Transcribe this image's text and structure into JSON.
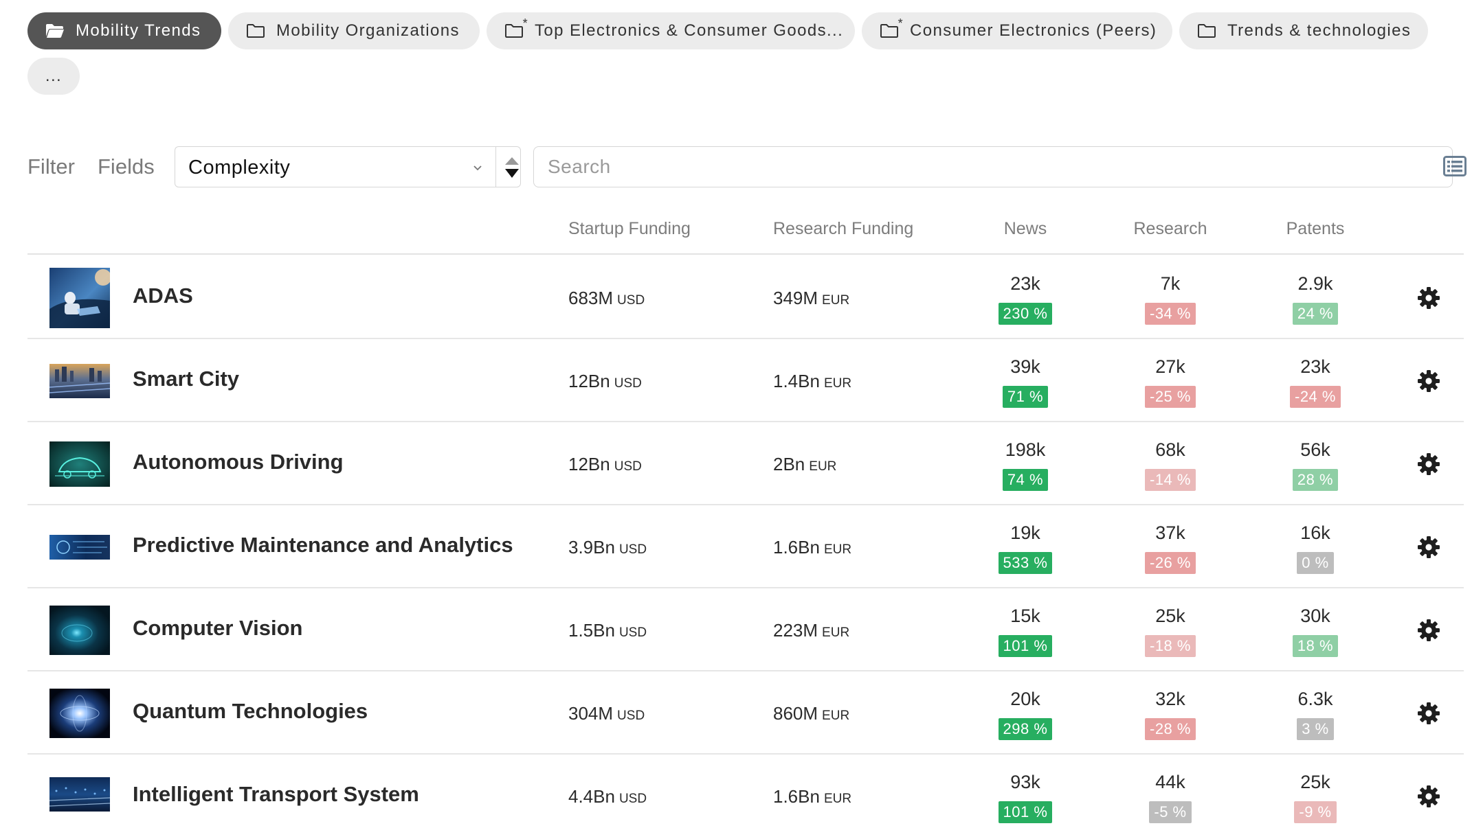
{
  "tabs": [
    {
      "label": "Mobility Trends",
      "active": true,
      "icon": "folder-open-icon",
      "starred": false
    },
    {
      "label": "Mobility Organizations",
      "active": false,
      "icon": "folder-icon",
      "starred": false
    },
    {
      "label": "Top Electronics & Consumer Goods...",
      "active": false,
      "icon": "folder-icon",
      "starred": true,
      "star": "*"
    },
    {
      "label": "Consumer Electronics (Peers)",
      "active": false,
      "icon": "folder-icon",
      "starred": true,
      "star": "*"
    },
    {
      "label": "Trends & technologies",
      "active": false,
      "icon": "folder-icon",
      "starred": false
    },
    {
      "label": "..."
    }
  ],
  "toolbar": {
    "filter_label": "Filter",
    "fields_label": "Fields",
    "sort_select_value": "Complexity",
    "search_placeholder": "Search"
  },
  "columns": {
    "startup_funding": "Startup Funding",
    "research_funding": "Research Funding",
    "news": "News",
    "research": "Research",
    "patents": "Patents"
  },
  "colors": {
    "badge_up_strong": "#27ae60",
    "badge_up_light": "#8fcfa5",
    "badge_down": "#e8a0a0",
    "badge_down_light": "#eab9b9",
    "badge_neutral": "#bdbdbd",
    "active_tab": "#555555"
  },
  "rows": [
    {
      "name": "ADAS",
      "thumbnail": "adas-image",
      "startup_funding": {
        "value": "683M",
        "currency": "USD"
      },
      "research_funding": {
        "value": "349M",
        "currency": "EUR"
      },
      "news": {
        "value": "23k",
        "change": "230 %",
        "tone": "up_strong"
      },
      "research": {
        "value": "7k",
        "change": "-34 %",
        "tone": "down"
      },
      "patents": {
        "value": "2.9k",
        "change": "24 %",
        "tone": "up_light"
      }
    },
    {
      "name": "Smart City",
      "thumbnail": "smart-city-image",
      "startup_funding": {
        "value": "12Bn",
        "currency": "USD"
      },
      "research_funding": {
        "value": "1.4Bn",
        "currency": "EUR"
      },
      "news": {
        "value": "39k",
        "change": "71 %",
        "tone": "up_strong"
      },
      "research": {
        "value": "27k",
        "change": "-25 %",
        "tone": "down"
      },
      "patents": {
        "value": "23k",
        "change": "-24 %",
        "tone": "down"
      }
    },
    {
      "name": "Autonomous Driving",
      "thumbnail": "autonomous-driving-image",
      "startup_funding": {
        "value": "12Bn",
        "currency": "USD"
      },
      "research_funding": {
        "value": "2Bn",
        "currency": "EUR"
      },
      "news": {
        "value": "198k",
        "change": "74 %",
        "tone": "up_strong"
      },
      "research": {
        "value": "68k",
        "change": "-14 %",
        "tone": "down_light"
      },
      "patents": {
        "value": "56k",
        "change": "28 %",
        "tone": "up_light"
      }
    },
    {
      "name": "Predictive Maintenance and Analytics",
      "thumbnail": "predictive-maintenance-image",
      "startup_funding": {
        "value": "3.9Bn",
        "currency": "USD"
      },
      "research_funding": {
        "value": "1.6Bn",
        "currency": "EUR"
      },
      "news": {
        "value": "19k",
        "change": "533 %",
        "tone": "up_strong"
      },
      "research": {
        "value": "37k",
        "change": "-26 %",
        "tone": "down"
      },
      "patents": {
        "value": "16k",
        "change": "0 %",
        "tone": "neutral"
      }
    },
    {
      "name": "Computer Vision",
      "thumbnail": "computer-vision-image",
      "startup_funding": {
        "value": "1.5Bn",
        "currency": "USD"
      },
      "research_funding": {
        "value": "223M",
        "currency": "EUR"
      },
      "news": {
        "value": "15k",
        "change": "101 %",
        "tone": "up_strong"
      },
      "research": {
        "value": "25k",
        "change": "-18 %",
        "tone": "down_light"
      },
      "patents": {
        "value": "30k",
        "change": "18 %",
        "tone": "up_light"
      }
    },
    {
      "name": "Quantum Technologies",
      "thumbnail": "quantum-technologies-image",
      "startup_funding": {
        "value": "304M",
        "currency": "USD"
      },
      "research_funding": {
        "value": "860M",
        "currency": "EUR"
      },
      "news": {
        "value": "20k",
        "change": "298 %",
        "tone": "up_strong"
      },
      "research": {
        "value": "32k",
        "change": "-28 %",
        "tone": "down"
      },
      "patents": {
        "value": "6.3k",
        "change": "3 %",
        "tone": "neutral"
      }
    },
    {
      "name": "Intelligent Transport System",
      "thumbnail": "intelligent-transport-image",
      "startup_funding": {
        "value": "4.4Bn",
        "currency": "USD"
      },
      "research_funding": {
        "value": "1.6Bn",
        "currency": "EUR"
      },
      "news": {
        "value": "93k",
        "change": "101 %",
        "tone": "up_strong"
      },
      "research": {
        "value": "44k",
        "change": "-5 %",
        "tone": "neutral"
      },
      "patents": {
        "value": "25k",
        "change": "-9 %",
        "tone": "down_light"
      }
    }
  ]
}
